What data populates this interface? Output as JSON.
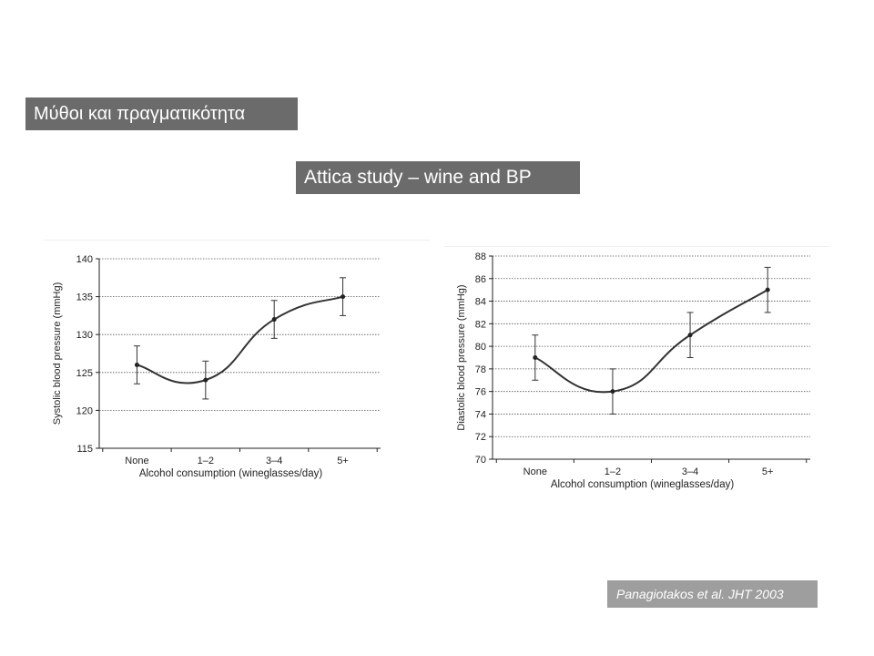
{
  "slide": {
    "title": "Μύθοι και πραγματικότητα",
    "subtitle": "Attica study – wine and BP",
    "citation": "Panagiotakos et al. JHT 2003"
  },
  "chart_data": [
    {
      "type": "line",
      "title": "",
      "xlabel": "Alcohol consumption (wineglasses/day)",
      "ylabel": "Systolic blood pressure (mmHg)",
      "categories": [
        "None",
        "1–2",
        "3–4",
        "5+"
      ],
      "values": [
        126,
        124,
        132,
        135
      ],
      "error_upper": [
        128.5,
        126.5,
        134.5,
        137.5
      ],
      "error_lower": [
        123.5,
        121.5,
        129.5,
        132.5
      ],
      "ylim": [
        115,
        140
      ],
      "yticks": [
        115,
        120,
        125,
        130,
        135,
        140
      ],
      "gridlines": true,
      "smooth": true,
      "line_color": "#333333"
    },
    {
      "type": "line",
      "title": "",
      "xlabel": "Alcohol consumption (wineglasses/day)",
      "ylabel": "Diastolic blood pressure (mmHg)",
      "categories": [
        "None",
        "1–2",
        "3–4",
        "5+"
      ],
      "values": [
        79,
        76,
        81,
        85
      ],
      "error_upper": [
        81,
        78,
        83,
        87
      ],
      "error_lower": [
        77,
        74,
        79,
        83
      ],
      "ylim": [
        70,
        88
      ],
      "yticks": [
        70,
        72,
        74,
        76,
        78,
        80,
        82,
        84,
        86,
        88
      ],
      "gridlines": true,
      "smooth": true,
      "line_color": "#333333"
    }
  ]
}
